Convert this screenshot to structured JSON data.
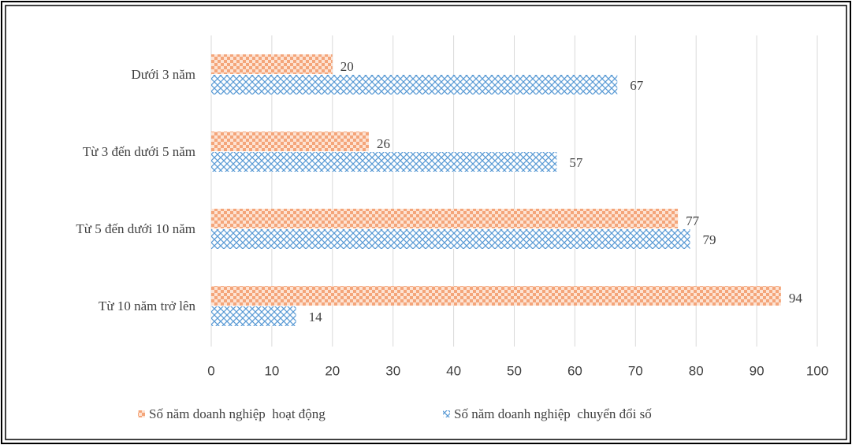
{
  "chart_data": {
    "type": "bar",
    "orientation": "horizontal",
    "categories": [
      "Dưới 3 năm",
      "Từ 3 đến dưới 5 năm",
      "Từ 5 đến dưới 10 năm",
      "Từ 10 năm trở lên"
    ],
    "series": [
      {
        "name": "Số năm doanh nghiệp  hoạt động",
        "color": "#f4a57a",
        "values": [
          20,
          26,
          77,
          94
        ]
      },
      {
        "name": "Số năm doanh nghiệp  chuyển đổi số",
        "color": "#5b9bd5",
        "values": [
          67,
          57,
          79,
          14
        ]
      }
    ],
    "xlim": [
      0,
      100
    ],
    "xticks": [
      0,
      10,
      20,
      30,
      40,
      50,
      60,
      70,
      80,
      90,
      100
    ],
    "grid": true,
    "legend": "bottom"
  }
}
